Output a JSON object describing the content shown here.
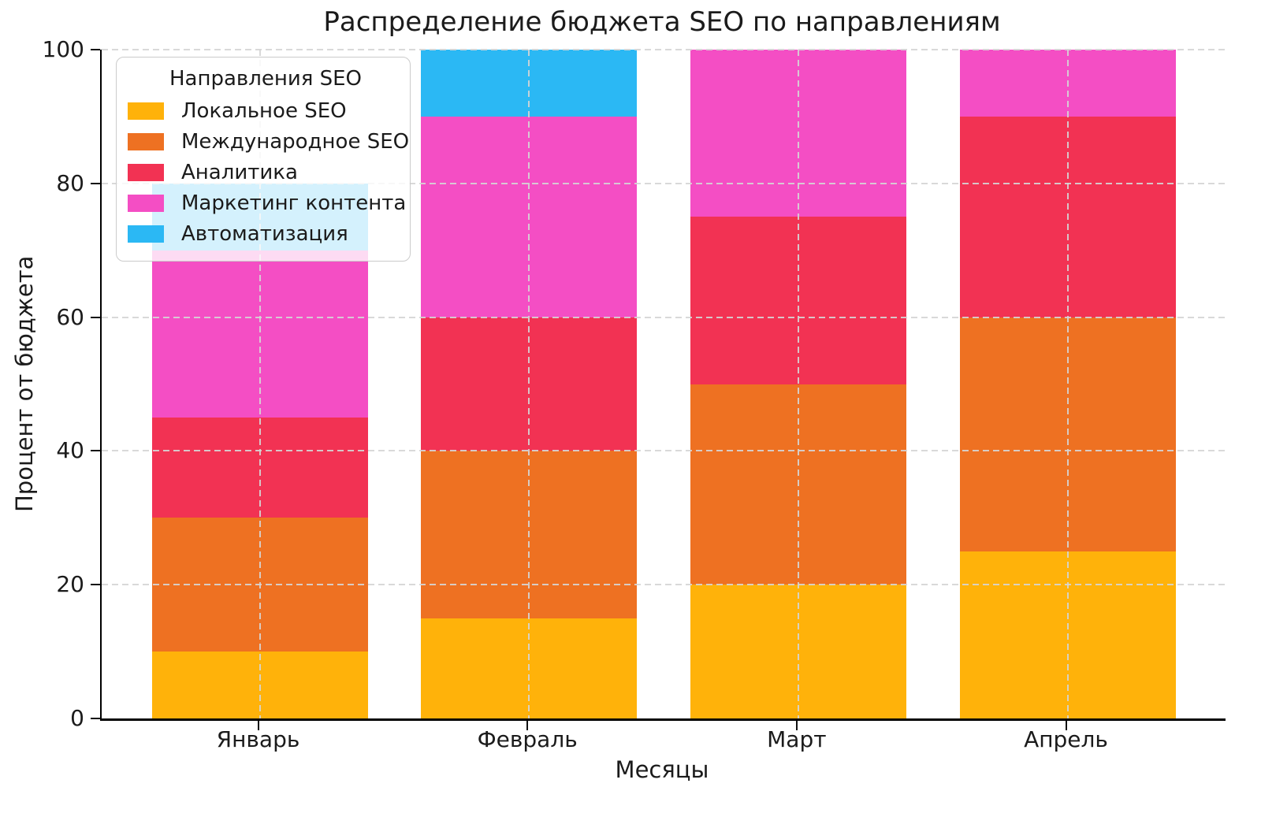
{
  "chart_data": {
    "type": "bar",
    "stacked": true,
    "title": "Распределение бюджета SEO по направлениям",
    "xlabel": "Месяцы",
    "ylabel": "Процент от бюджета",
    "categories": [
      "Январь",
      "Февраль",
      "Март",
      "Апрель"
    ],
    "series": [
      {
        "name": "Локальное SEO",
        "color": "#FFB20A",
        "values": [
          10,
          15,
          20,
          25
        ]
      },
      {
        "name": "Международное SEO",
        "color": "#EE7122",
        "values": [
          20,
          25,
          30,
          35
        ]
      },
      {
        "name": "Аналитика",
        "color": "#F23253",
        "values": [
          15,
          20,
          25,
          30
        ]
      },
      {
        "name": "Маркетинг контента",
        "color": "#F44EC4",
        "values": [
          25,
          30,
          25,
          10
        ]
      },
      {
        "name": "Автоматизация",
        "color": "#2BB8F4",
        "values": [
          10,
          10,
          0,
          0
        ]
      }
    ],
    "totals": [
      80,
      100,
      100,
      100
    ],
    "ylim": [
      0,
      100
    ],
    "yticks": [
      0,
      20,
      40,
      60,
      80,
      100
    ],
    "legend": {
      "title": "Направления SEO",
      "position": "upper left"
    },
    "grid": {
      "show": true,
      "style": "dashed",
      "color": "#d5d5d5",
      "over_bars": true
    }
  }
}
